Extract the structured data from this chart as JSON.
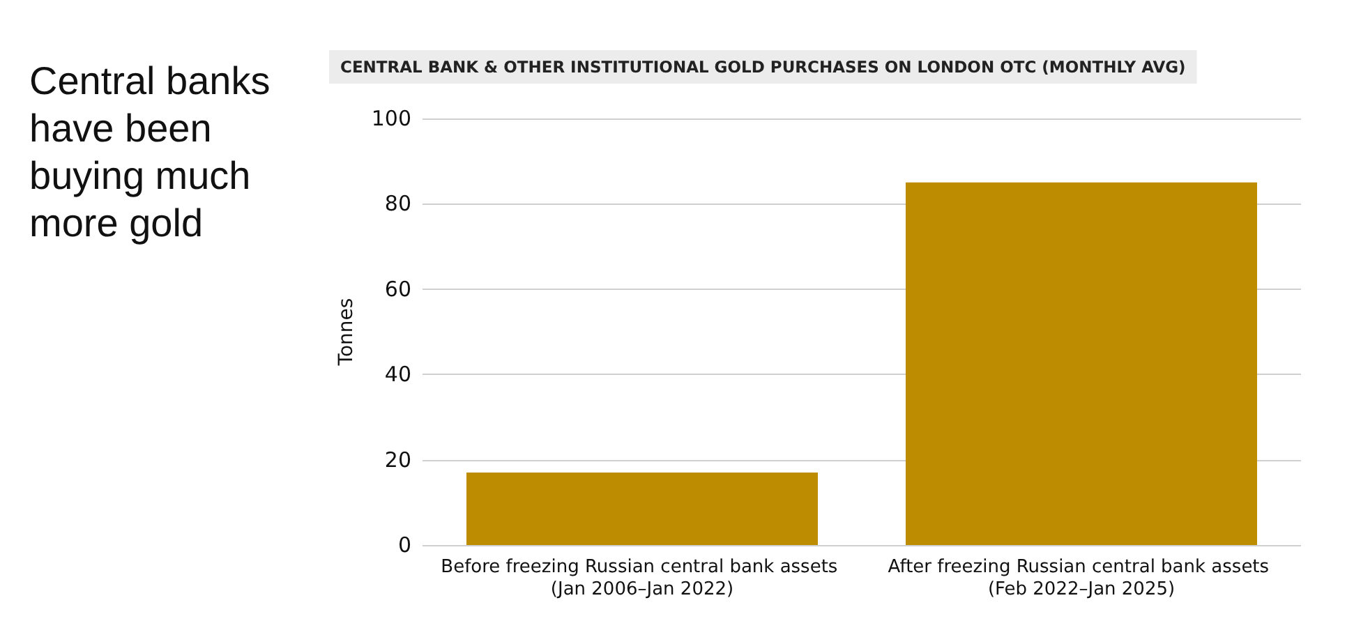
{
  "chart_data": {
    "type": "bar",
    "title": "Central banks have been buying much more gold",
    "subtitle": "CENTRAL BANK & OTHER INSTITUTIONAL GOLD PURCHASES ON LONDON OTC (MONTHLY AVG)",
    "ylabel": "Tonnes",
    "categories": [
      "Before freezing Russian central bank assets (Jan 2006–Jan 2022)",
      "After freezing Russian central bank assets (Feb 2022–Jan 2025)"
    ],
    "values": [
      17,
      85
    ],
    "color": "#bd8c00",
    "ylim": [
      0,
      100
    ],
    "yticks": [
      0,
      20,
      40,
      60,
      80,
      100
    ],
    "grid": "y"
  }
}
